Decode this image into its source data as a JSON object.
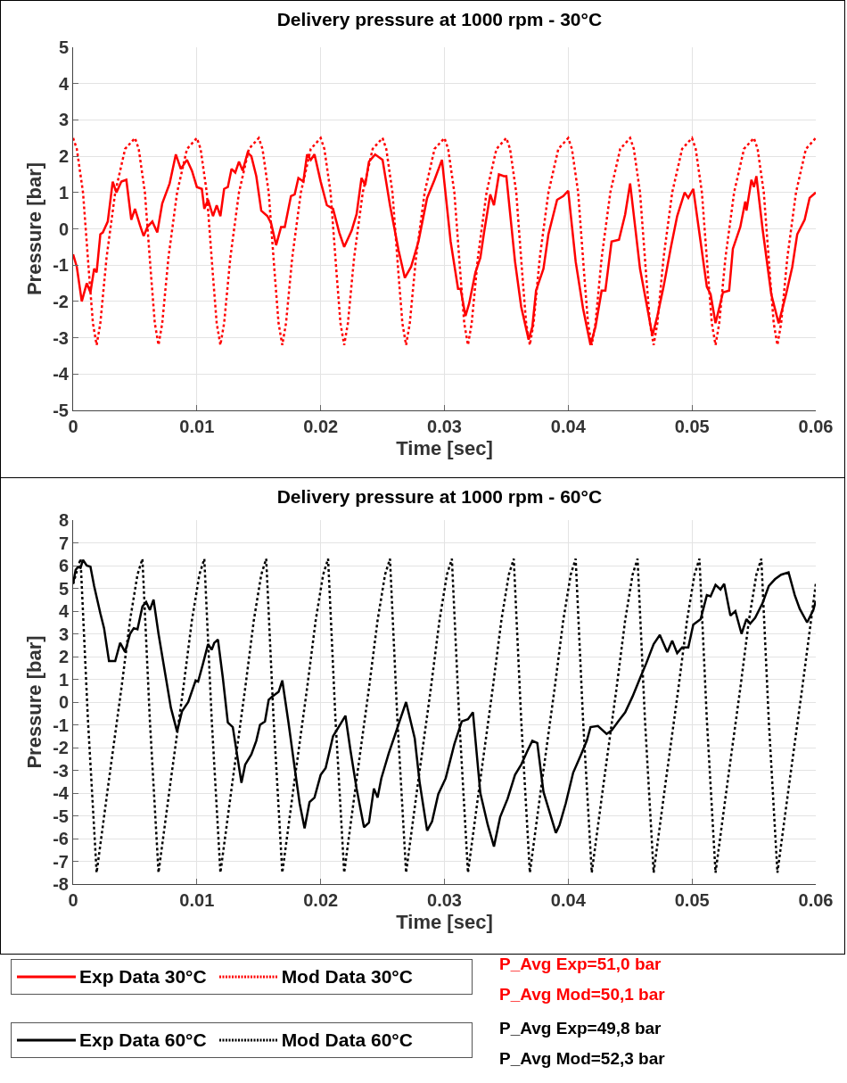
{
  "chart_data": [
    {
      "type": "line",
      "title": "Delivery pressure at 1000 rpm - 30°C",
      "xlabel": "Time [sec]",
      "ylabel": "Pressure [bar]",
      "xlim": [
        0,
        0.06
      ],
      "xticks": [
        0,
        0.01,
        0.02,
        0.03,
        0.04,
        0.05,
        0.06
      ],
      "ylim": [
        -5,
        5
      ],
      "yticks": [
        -5,
        -4,
        -3,
        -2,
        -1,
        0,
        1,
        2,
        3,
        4,
        5
      ],
      "grid": true,
      "legend": "bottom",
      "annotations": [
        "P_Avg Exp=51,0 bar",
        "P_Avg Mod=50,1 bar"
      ],
      "series": [
        {
          "name": "Exp Data 30°C",
          "color": "#ff0000",
          "line_style": "solid",
          "x": [
            0,
            0.0003,
            0.0007,
            0.0011,
            0.0014,
            0.0017,
            0.0019,
            0.0022,
            0.0024,
            0.0028,
            0.0032,
            0.0035,
            0.0039,
            0.0043,
            0.0047,
            0.005,
            0.0054,
            0.0057,
            0.006,
            0.0064,
            0.0068,
            0.0072,
            0.0078,
            0.0083,
            0.0087,
            0.0092,
            0.0096,
            0.01,
            0.0104,
            0.0106,
            0.0109,
            0.0113,
            0.0116,
            0.0119,
            0.0122,
            0.0125,
            0.0128,
            0.0131,
            0.0134,
            0.0137,
            0.0141,
            0.0144,
            0.0148,
            0.0152,
            0.0157,
            0.016,
            0.0164,
            0.0168,
            0.0171,
            0.0176,
            0.0179,
            0.0182,
            0.0186,
            0.0189,
            0.0192,
            0.0195,
            0.02,
            0.0205,
            0.021,
            0.0215,
            0.0219,
            0.0225,
            0.0229,
            0.0233,
            0.0236,
            0.0239,
            0.0244,
            0.025,
            0.0256,
            0.0263,
            0.0268,
            0.0273,
            0.0279,
            0.0286,
            0.0292,
            0.0298,
            0.0305,
            0.0311,
            0.0313,
            0.0317,
            0.032,
            0.0325,
            0.0329,
            0.0332,
            0.0337,
            0.034,
            0.0344,
            0.0348,
            0.035,
            0.0357,
            0.0362,
            0.0368,
            0.0371,
            0.0374,
            0.038,
            0.0384,
            0.0391,
            0.0396,
            0.04,
            0.0406,
            0.0412,
            0.0418,
            0.0422,
            0.0427,
            0.043,
            0.0435,
            0.0441,
            0.0446,
            0.045,
            0.0458,
            0.0464,
            0.0468,
            0.0472,
            0.0477,
            0.0483,
            0.0488,
            0.0494,
            0.0497,
            0.0501,
            0.0512,
            0.0515,
            0.0519,
            0.0525,
            0.053,
            0.0533,
            0.0539,
            0.0543,
            0.0544,
            0.0548,
            0.055,
            0.0552,
            0.0557,
            0.0564,
            0.057,
            0.0576,
            0.0581,
            0.0585,
            0.0591,
            0.0595,
            0.06
          ],
          "values": [
            -0.7,
            -1.05,
            -2.0,
            -1.5,
            -1.75,
            -1.1,
            -1.2,
            -0.15,
            -0.1,
            0.2,
            1.3,
            1.0,
            1.3,
            1.35,
            0.25,
            0.55,
            0.1,
            -0.2,
            0.05,
            0.2,
            -0.1,
            0.7,
            1.25,
            2.05,
            1.65,
            1.9,
            1.6,
            1.15,
            1.1,
            0.55,
            0.8,
            0.35,
            0.65,
            0.35,
            1.1,
            1.15,
            1.65,
            1.55,
            1.85,
            1.6,
            2.1,
            2.0,
            1.45,
            0.5,
            0.35,
            0.15,
            -0.45,
            0.05,
            0.05,
            0.9,
            0.95,
            1.4,
            1.3,
            2.05,
            1.9,
            2.05,
            1.3,
            0.65,
            0.55,
            -0.1,
            -0.5,
            -0.05,
            0.4,
            1.4,
            1.2,
            1.85,
            2.05,
            1.9,
            0.65,
            -0.6,
            -1.35,
            -1.05,
            -0.35,
            0.85,
            1.35,
            1.9,
            -0.35,
            -1.65,
            -1.65,
            -2.4,
            -2.05,
            -1.2,
            -0.8,
            -0.1,
            0.95,
            0.65,
            1.5,
            1.45,
            1.45,
            -0.9,
            -2.15,
            -3.05,
            -2.7,
            -1.7,
            -1.1,
            -0.15,
            0.8,
            0.9,
            1.05,
            -0.9,
            -2.2,
            -3.2,
            -2.7,
            -1.7,
            -1.7,
            -0.35,
            -0.3,
            0.4,
            1.25,
            -1.1,
            -2.2,
            -2.95,
            -2.4,
            -1.6,
            -0.5,
            0.35,
            1.0,
            0.85,
            1.1,
            -1.6,
            -1.8,
            -2.6,
            -1.75,
            -1.7,
            -0.55,
            0.05,
            0.75,
            0.5,
            1.35,
            1.15,
            1.45,
            0,
            -1.8,
            -2.6,
            -1.8,
            -1.05,
            -0.15,
            0.25,
            0.85,
            1.0
          ]
        },
        {
          "name": "Mod Data 30°C",
          "color": "#ff0000",
          "line_style": "dotted",
          "x": [
            0,
            0.0003,
            0.0008,
            0.0013,
            0.0016,
            0.0019,
            0.0022,
            0.0027,
            0.0034,
            0.0042,
            0.005,
            0.0053,
            0.0058,
            0.0063,
            0.0066,
            0.0069,
            0.0072,
            0.0077,
            0.0084,
            0.0092,
            0.01,
            0.0103,
            0.0108,
            0.0113,
            0.0116,
            0.0119,
            0.0122,
            0.0127,
            0.0134,
            0.0142,
            0.015,
            0.0153,
            0.0158,
            0.0163,
            0.0166,
            0.0169,
            0.0172,
            0.0177,
            0.0184,
            0.0192,
            0.02,
            0.0203,
            0.0208,
            0.0213,
            0.0216,
            0.0219,
            0.0222,
            0.0227,
            0.0234,
            0.0242,
            0.025,
            0.0253,
            0.0258,
            0.0263,
            0.0266,
            0.0269,
            0.0272,
            0.0277,
            0.0284,
            0.0292,
            0.03,
            0.0303,
            0.0308,
            0.0313,
            0.0316,
            0.0319,
            0.0322,
            0.0327,
            0.0334,
            0.0342,
            0.035,
            0.0353,
            0.0358,
            0.0363,
            0.0366,
            0.0369,
            0.0372,
            0.0377,
            0.0384,
            0.0392,
            0.04,
            0.0403,
            0.0408,
            0.0413,
            0.0416,
            0.0419,
            0.0422,
            0.0427,
            0.0434,
            0.0442,
            0.045,
            0.0453,
            0.0458,
            0.0463,
            0.0466,
            0.0469,
            0.0472,
            0.0477,
            0.0484,
            0.0492,
            0.05,
            0.0503,
            0.0508,
            0.0513,
            0.0516,
            0.0519,
            0.0522,
            0.0527,
            0.0534,
            0.0542,
            0.055,
            0.0553,
            0.0558,
            0.0563,
            0.0566,
            0.0569,
            0.0572,
            0.0577,
            0.0584,
            0.0592,
            0.06
          ],
          "values": [
            2.5,
            2.2,
            1.0,
            -1.3,
            -2.6,
            -3.2,
            -2.6,
            -0.8,
            1.0,
            2.2,
            2.5,
            2.2,
            1.0,
            -1.3,
            -2.6,
            -3.2,
            -2.6,
            -0.8,
            1.0,
            2.2,
            2.5,
            2.2,
            1.0,
            -1.3,
            -2.6,
            -3.2,
            -2.6,
            -0.8,
            1.0,
            2.2,
            2.5,
            2.2,
            1.0,
            -1.3,
            -2.6,
            -3.2,
            -2.6,
            -0.8,
            1.0,
            2.2,
            2.5,
            2.2,
            1.0,
            -1.3,
            -2.6,
            -3.2,
            -2.6,
            -0.8,
            1.0,
            2.2,
            2.5,
            2.2,
            1.0,
            -1.3,
            -2.6,
            -3.2,
            -2.6,
            -0.8,
            1.0,
            2.2,
            2.5,
            2.2,
            1.0,
            -1.3,
            -2.6,
            -3.2,
            -2.6,
            -0.8,
            1.0,
            2.2,
            2.5,
            2.2,
            1.0,
            -1.3,
            -2.6,
            -3.2,
            -2.6,
            -0.8,
            1.0,
            2.2,
            2.5,
            2.2,
            1.0,
            -1.3,
            -2.6,
            -3.2,
            -2.6,
            -0.8,
            1.0,
            2.2,
            2.5,
            2.2,
            1.0,
            -1.3,
            -2.6,
            -3.2,
            -2.6,
            -0.8,
            1.0,
            2.2,
            2.5,
            2.2,
            1.0,
            -1.3,
            -2.6,
            -3.2,
            -2.6,
            -0.8,
            1.0,
            2.2,
            2.5,
            2.2,
            1.0,
            -1.3,
            -2.6,
            -3.2,
            -2.6,
            -0.8,
            1.0,
            2.2,
            2.5
          ]
        }
      ]
    },
    {
      "type": "line",
      "title": "Delivery pressure at 1000 rpm - 60°C",
      "xlabel": "Time [sec]",
      "ylabel": "Pressure [bar]",
      "xlim": [
        0,
        0.06
      ],
      "xticks": [
        0,
        0.01,
        0.02,
        0.03,
        0.04,
        0.05,
        0.06
      ],
      "ylim": [
        -8,
        8
      ],
      "yticks": [
        -8,
        -7,
        -6,
        -5,
        -4,
        -3,
        -2,
        -1,
        0,
        1,
        2,
        3,
        4,
        5,
        6,
        7,
        8
      ],
      "grid": true,
      "legend": "bottom",
      "annotations": [
        "P_Avg Exp=49,8 bar",
        "P_Avg Mod=52,3 bar"
      ],
      "series": [
        {
          "name": "Exp Data 60°C",
          "color": "#000000",
          "line_style": "solid",
          "x": [
            0,
            0.0002,
            0.0004,
            0.0006,
            0.0008,
            0.0011,
            0.0014,
            0.0017,
            0.0022,
            0.0025,
            0.0029,
            0.0034,
            0.0038,
            0.0042,
            0.0046,
            0.0049,
            0.0052,
            0.0056,
            0.0059,
            0.0062,
            0.0065,
            0.0069,
            0.0075,
            0.0079,
            0.0084,
            0.0088,
            0.0093,
            0.0099,
            0.0101,
            0.0105,
            0.0109,
            0.0112,
            0.0114,
            0.0117,
            0.0121,
            0.0125,
            0.0129,
            0.0132,
            0.0136,
            0.0139,
            0.0144,
            0.0148,
            0.0151,
            0.0155,
            0.0158,
            0.0161,
            0.0166,
            0.0169,
            0.0174,
            0.0179,
            0.0183,
            0.0187,
            0.0191,
            0.0195,
            0.02,
            0.0204,
            0.021,
            0.0215,
            0.022,
            0.0224,
            0.0229,
            0.0235,
            0.0239,
            0.0243,
            0.0246,
            0.0249,
            0.0255,
            0.026,
            0.0264,
            0.0269,
            0.0276,
            0.028,
            0.0286,
            0.029,
            0.0295,
            0.0301,
            0.0308,
            0.0314,
            0.0319,
            0.0323,
            0.0329,
            0.0335,
            0.034,
            0.0345,
            0.0351,
            0.0357,
            0.0362,
            0.0367,
            0.0371,
            0.0375,
            0.038,
            0.0385,
            0.039,
            0.0393,
            0.0398,
            0.0404,
            0.041,
            0.0415,
            0.0418,
            0.0424,
            0.0431,
            0.0435,
            0.0441,
            0.0446,
            0.0452,
            0.0458,
            0.0463,
            0.0469,
            0.0474,
            0.048,
            0.0484,
            0.0488,
            0.0492,
            0.0497,
            0.0501,
            0.0507,
            0.0512,
            0.0515,
            0.0519,
            0.0523,
            0.0526,
            0.0531,
            0.0535,
            0.054,
            0.0544,
            0.0547,
            0.0551,
            0.0557,
            0.0562,
            0.0567,
            0.0572,
            0.0578,
            0.0583,
            0.0587,
            0.0593,
            0.0598,
            0.06
          ],
          "values": [
            5.2,
            5.8,
            5.95,
            5.9,
            6.25,
            6.0,
            5.95,
            5.1,
            3.9,
            3.25,
            1.8,
            1.8,
            2.6,
            2.2,
            3.0,
            3.25,
            3.2,
            4.2,
            4.4,
            4.05,
            4.5,
            3.0,
            1.05,
            -0.25,
            -1.3,
            -0.4,
            0.0,
            0.95,
            0.9,
            1.7,
            2.55,
            2.3,
            2.6,
            2.75,
            1.05,
            -0.9,
            -1.1,
            -2.15,
            -3.55,
            -2.75,
            -2.3,
            -1.7,
            -1.0,
            -0.85,
            0.1,
            0.25,
            0.45,
            0.95,
            -0.9,
            -2.9,
            -4.45,
            -5.55,
            -4.4,
            -4.2,
            -3.2,
            -2.9,
            -1.5,
            -1.05,
            -0.6,
            -2.1,
            -3.8,
            -5.5,
            -5.3,
            -3.8,
            -4.2,
            -3.35,
            -2.25,
            -1.45,
            -0.8,
            0.0,
            -1.6,
            -3.55,
            -5.65,
            -5.25,
            -4.05,
            -3.35,
            -1.85,
            -0.85,
            -0.75,
            -0.45,
            -4.0,
            -5.4,
            -6.35,
            -5.05,
            -4.25,
            -3.2,
            -2.75,
            -2.15,
            -1.7,
            -1.8,
            -3.95,
            -4.85,
            -5.75,
            -5.4,
            -4.45,
            -3.1,
            -2.35,
            -1.7,
            -1.1,
            -1.05,
            -1.4,
            -1.25,
            -0.8,
            -0.45,
            0.25,
            1.05,
            1.7,
            2.55,
            2.95,
            2.2,
            2.7,
            2.15,
            2.4,
            2.4,
            3.4,
            3.65,
            4.7,
            4.65,
            5.15,
            4.95,
            5.2,
            3.8,
            4.0,
            3.0,
            3.65,
            3.45,
            3.7,
            4.35,
            5.1,
            5.4,
            5.6,
            5.7,
            4.7,
            4.1,
            3.5,
            4.05,
            4.45
          ]
        },
        {
          "name": "Mod Data 60°C",
          "color": "#000000",
          "line_style": "dotted",
          "x": [
            0,
            0.0006,
            0.0012,
            0.0019,
            0.0029,
            0.0039,
            0.0046,
            0.0052,
            0.0056,
            0.0062,
            0.0069,
            0.0079,
            0.0089,
            0.0096,
            0.0102,
            0.0106,
            0.0112,
            0.0119,
            0.0129,
            0.0139,
            0.0146,
            0.0152,
            0.0156,
            0.0162,
            0.0169,
            0.0179,
            0.0189,
            0.0196,
            0.0202,
            0.0206,
            0.0212,
            0.0219,
            0.0229,
            0.0239,
            0.0246,
            0.0252,
            0.0256,
            0.0262,
            0.0269,
            0.0279,
            0.0289,
            0.0296,
            0.0302,
            0.0306,
            0.0312,
            0.0319,
            0.0329,
            0.0339,
            0.0346,
            0.0352,
            0.0356,
            0.0362,
            0.0369,
            0.0379,
            0.0389,
            0.0396,
            0.0402,
            0.0406,
            0.0412,
            0.0419,
            0.0429,
            0.0439,
            0.0446,
            0.0452,
            0.0456,
            0.0462,
            0.0469,
            0.0479,
            0.0489,
            0.0496,
            0.0502,
            0.0506,
            0.0512,
            0.0519,
            0.0529,
            0.0539,
            0.0546,
            0.0552,
            0.0556,
            0.0562,
            0.0569,
            0.0579,
            0.0589,
            0.06
          ],
          "values": [
            5.2,
            6.3,
            -0.8,
            -7.5,
            -3.4,
            0.6,
            3.6,
            5.6,
            6.3,
            -0.8,
            -7.5,
            -3.4,
            0.6,
            3.6,
            5.6,
            6.3,
            -0.8,
            -7.5,
            -3.4,
            0.6,
            3.6,
            5.6,
            6.3,
            -0.8,
            -7.5,
            -3.4,
            0.6,
            3.6,
            5.6,
            6.3,
            -0.8,
            -7.5,
            -3.4,
            0.6,
            3.6,
            5.6,
            6.3,
            -0.8,
            -7.5,
            -3.4,
            0.6,
            3.6,
            5.6,
            6.3,
            -0.8,
            -7.5,
            -3.4,
            0.6,
            3.6,
            5.6,
            6.3,
            -0.8,
            -7.5,
            -3.4,
            0.6,
            3.6,
            5.6,
            6.3,
            -0.8,
            -7.5,
            -3.4,
            0.6,
            3.6,
            5.6,
            6.3,
            -0.8,
            -7.5,
            -3.4,
            0.6,
            3.6,
            5.6,
            6.3,
            -0.8,
            -7.5,
            -3.4,
            0.6,
            3.6,
            5.6,
            6.3,
            -0.8,
            -7.5,
            -3.4,
            0.6,
            5.2
          ]
        }
      ]
    }
  ]
}
